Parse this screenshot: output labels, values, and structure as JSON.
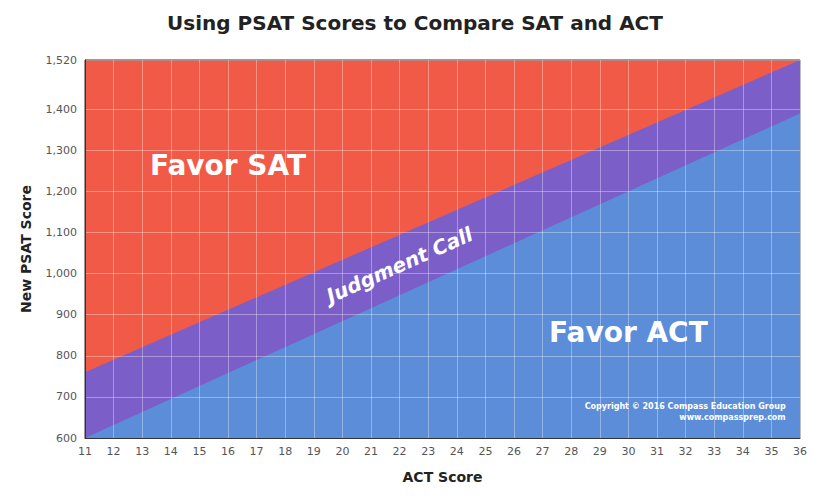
{
  "chart_data": {
    "type": "area",
    "title": "Using PSAT Scores to Compare SAT and ACT",
    "xlabel": "ACT Score",
    "ylabel": "New PSAT Score",
    "x": [
      11,
      36
    ],
    "series": [
      {
        "values": [
          760,
          1520
        ],
        "color": "#7B5EC8"
      },
      {
        "values": [
          600,
          1390
        ],
        "color": "#5B8DD9"
      }
    ],
    "color": "#F05A47",
    "xlim": [
      11,
      36
    ],
    "ylim": [
      600,
      1520
    ],
    "xticks": [
      11,
      12,
      13,
      14,
      15,
      16,
      17,
      18,
      19,
      20,
      21,
      22,
      23,
      24,
      25,
      26,
      27,
      28,
      29,
      30,
      31,
      32,
      33,
      34,
      35,
      36
    ],
    "yticks": [
      600,
      700,
      800,
      900,
      1000,
      1100,
      1200,
      1300,
      1400,
      1520
    ],
    "grid": true,
    "annotations": [
      "Favor SAT",
      "Favor ACT",
      "Judgment Call",
      "Copyright © 2016 Compass Education Group\nwww.compassprep.com"
    ]
  }
}
